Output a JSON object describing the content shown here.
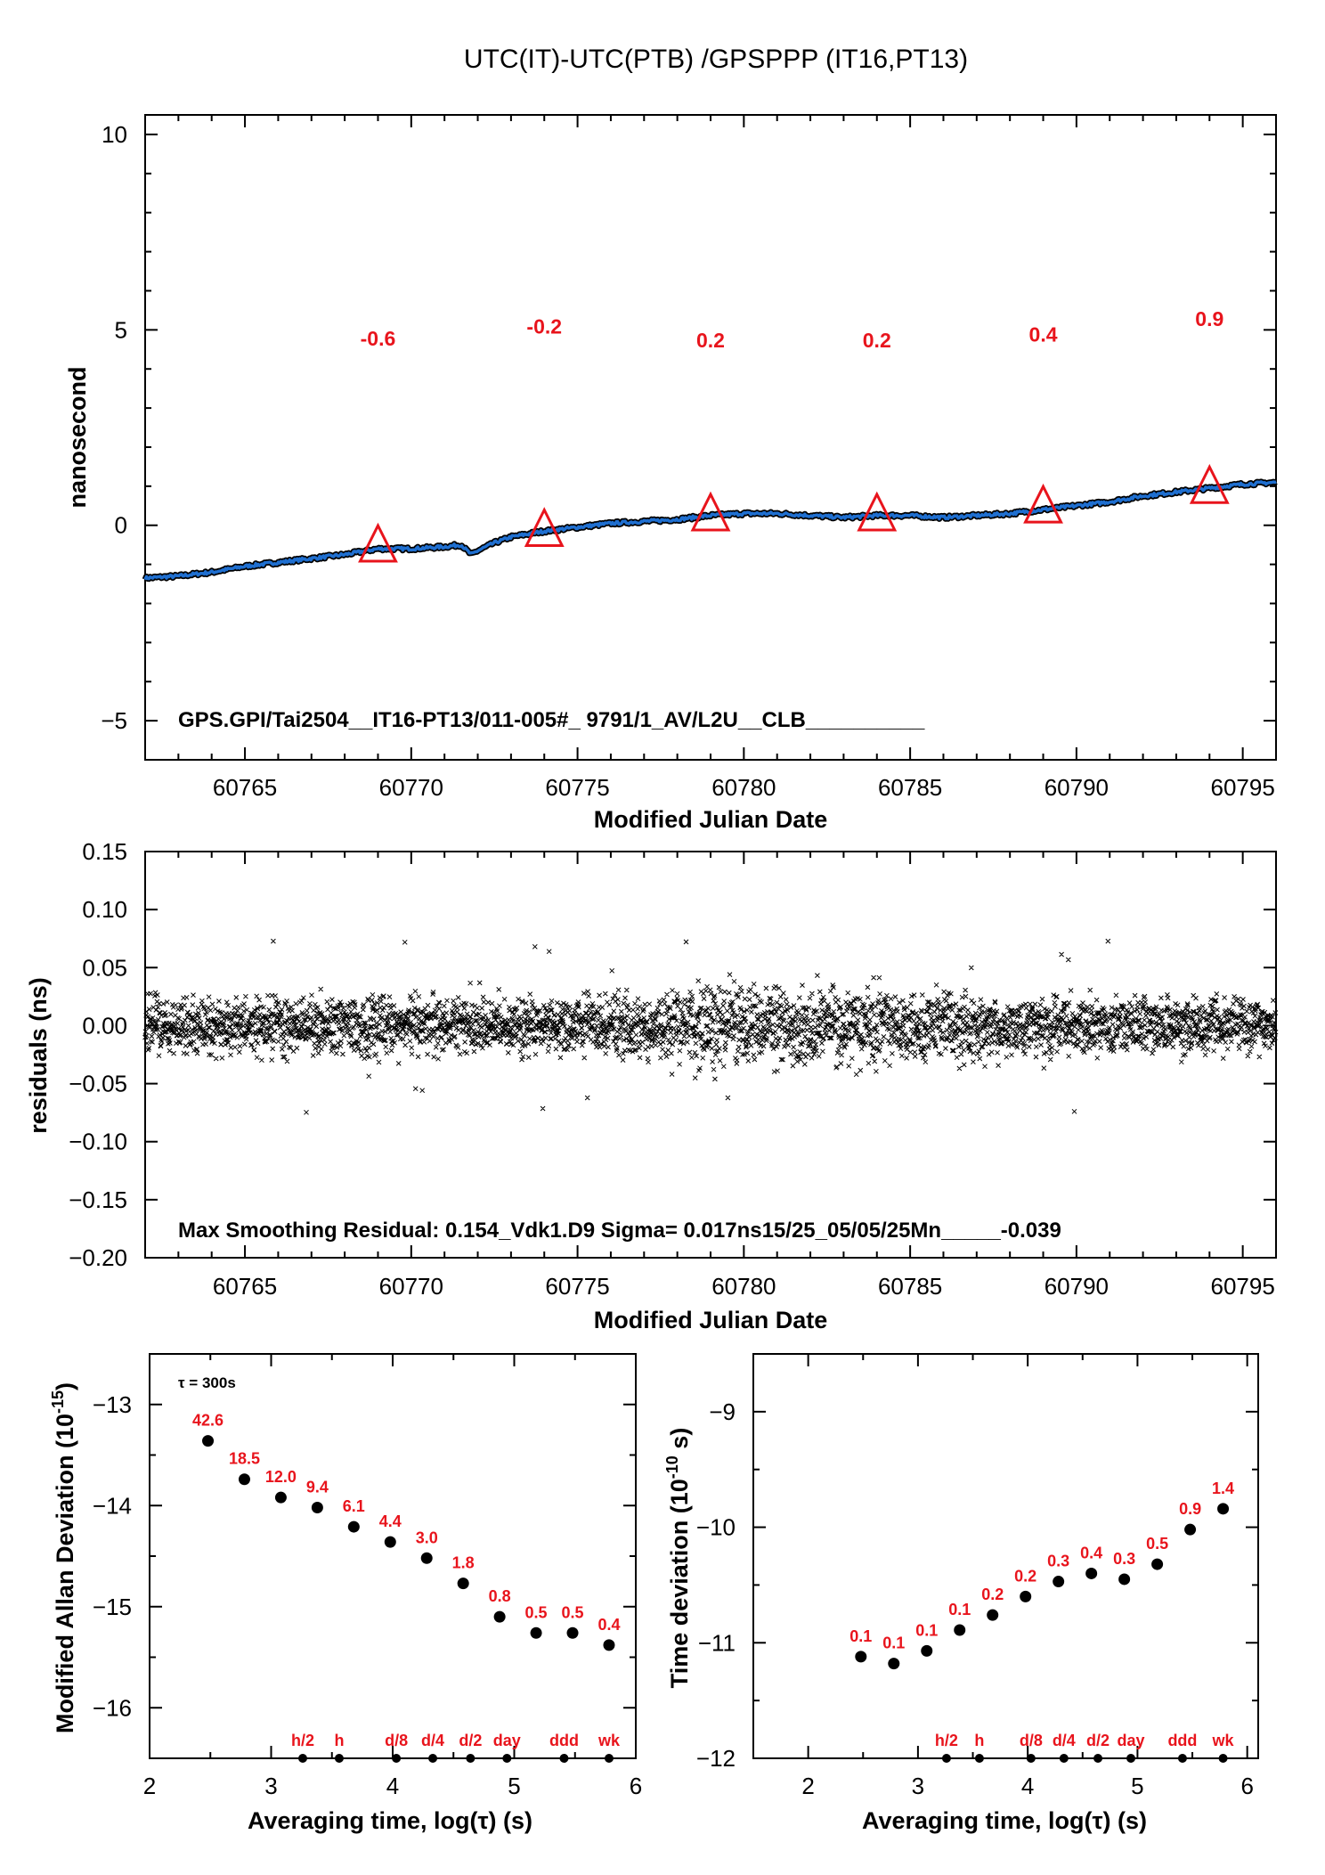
{
  "chart_data": [
    {
      "type": "line",
      "title": "UTC(IT)-UTC(PTB)  /GPSPPP  (IT16,PT13)",
      "xlabel": "Modified Julian Date",
      "ylabel": "nanosecond",
      "xlim": [
        60762,
        60796
      ],
      "ylim": [
        -6,
        10.5
      ],
      "xticks": [
        "60765",
        "60770",
        "60775",
        "60780",
        "60785",
        "60790",
        "60795"
      ],
      "yticks": [
        "10",
        "5",
        "0",
        "−5"
      ],
      "series_color": "#1f6fd0",
      "curve": {
        "x": [
          60762,
          60763,
          60764,
          60765,
          60766,
          60767,
          60768,
          60769,
          60770,
          60771,
          60771.5,
          60771.8,
          60772,
          60772.5,
          60773,
          60774,
          60775,
          60776,
          60777,
          60778,
          60779,
          60780,
          60781,
          60782,
          60783,
          60784,
          60785,
          60786,
          60787,
          60788,
          60789,
          60790,
          60791,
          60792,
          60793,
          60794,
          60795,
          60796
        ],
        "y": [
          -1.35,
          -1.3,
          -1.2,
          -1.05,
          -0.95,
          -0.85,
          -0.75,
          -0.6,
          -0.6,
          -0.55,
          -0.5,
          -0.75,
          -0.65,
          -0.45,
          -0.3,
          -0.15,
          -0.05,
          0.05,
          0.1,
          0.15,
          0.25,
          0.3,
          0.3,
          0.25,
          0.2,
          0.25,
          0.25,
          0.2,
          0.25,
          0.3,
          0.4,
          0.5,
          0.6,
          0.75,
          0.85,
          0.95,
          1.05,
          1.1
        ]
      },
      "markers": {
        "x": [
          60769,
          60774,
          60779,
          60784,
          60789,
          60794
        ],
        "y": [
          -0.6,
          -0.2,
          0.2,
          0.2,
          0.4,
          0.9
        ]
      },
      "marker_labels": [
        "-0.6",
        "-0.2",
        "0.2",
        "0.2",
        "0.4",
        "0.9"
      ],
      "annotation": "GPS.GPI/Tai2504__IT16-PT13/011-005#_  9791/1_AV/L2U__CLB__________"
    },
    {
      "type": "scatter",
      "xlabel": "Modified Julian Date",
      "ylabel": "residuals (ns)",
      "xlim": [
        60762,
        60796
      ],
      "ylim": [
        -0.2,
        0.15
      ],
      "xticks": [
        "60765",
        "60770",
        "60775",
        "60780",
        "60785",
        "60790",
        "60795"
      ],
      "yticks": [
        "0.15",
        "0.10",
        "0.05",
        "0.00",
        "−0.05",
        "−0.10",
        "−0.15",
        "−0.20"
      ],
      "sigma_ns": 0.017,
      "max_residual": 0.154,
      "annotation": "Max Smoothing Residual: 0.154_Vdk1.D9  Sigma= 0.017ns15/25_05/05/25Mn_____-0.039"
    },
    {
      "type": "scatter",
      "xlabel": "Averaging time, log(τ) (s)",
      "ylabel": "Modified Allan Deviation",
      "ylabel_unit": "(10",
      "ylabel_exp": "-15",
      "ylabel_close": ")",
      "xlim": [
        2,
        6
      ],
      "ylim": [
        -16.5,
        -12.5
      ],
      "xticks": [
        "2",
        "3",
        "4",
        "5",
        "6"
      ],
      "yticks": [
        "−13",
        "−14",
        "−15",
        "−16"
      ],
      "tau_note": "τ = 300s",
      "x": [
        2.48,
        2.78,
        3.08,
        3.38,
        3.68,
        3.98,
        4.28,
        4.58,
        4.88,
        5.18,
        5.48,
        5.78
      ],
      "y": [
        -13.36,
        -13.74,
        -13.92,
        -14.02,
        -14.21,
        -14.36,
        -14.52,
        -14.77,
        -15.1,
        -15.26,
        -15.26,
        -15.38
      ],
      "point_labels": [
        "42.6",
        "18.5",
        "12.0",
        "9.4",
        "6.1",
        "4.4",
        "3.0",
        "1.8",
        "0.8",
        "0.5",
        "0.5",
        "0.4"
      ],
      "span_markers": [
        {
          "label": "h/2",
          "x": 3.26
        },
        {
          "label": "h",
          "x": 3.56
        },
        {
          "label": "d/8",
          "x": 4.03
        },
        {
          "label": "d/4",
          "x": 4.33
        },
        {
          "label": "d/2",
          "x": 4.64
        },
        {
          "label": "day",
          "x": 4.94
        },
        {
          "label": "ddd",
          "x": 5.41
        },
        {
          "label": "wk",
          "x": 5.78
        }
      ]
    },
    {
      "type": "scatter",
      "xlabel": "Averaging time, log(τ) (s)",
      "ylabel": "Time deviation",
      "ylabel_unit": "(10",
      "ylabel_exp": "-10",
      "ylabel_close": " s)",
      "xlim": [
        1.5,
        6.1
      ],
      "ylim": [
        -12,
        -8.5
      ],
      "xticks": [
        "2",
        "3",
        "4",
        "5",
        "6"
      ],
      "yticks": [
        "−9",
        "−10",
        "−11",
        "−12"
      ],
      "x": [
        2.48,
        2.78,
        3.08,
        3.38,
        3.68,
        3.98,
        4.28,
        4.58,
        4.88,
        5.18,
        5.48,
        5.78
      ],
      "y": [
        -11.12,
        -11.18,
        -11.07,
        -10.89,
        -10.76,
        -10.6,
        -10.47,
        -10.4,
        -10.45,
        -10.32,
        -10.02,
        -9.84
      ],
      "point_labels": [
        "0.1",
        "0.1",
        "0.1",
        "0.1",
        "0.2",
        "0.2",
        "0.3",
        "0.4",
        "0.3",
        "0.5",
        "0.9",
        "1.4"
      ],
      "span_markers": [
        {
          "label": "h/2",
          "x": 3.26
        },
        {
          "label": "h",
          "x": 3.56
        },
        {
          "label": "d/8",
          "x": 4.03
        },
        {
          "label": "d/4",
          "x": 4.33
        },
        {
          "label": "d/2",
          "x": 4.64
        },
        {
          "label": "day",
          "x": 4.94
        },
        {
          "label": "ddd",
          "x": 5.41
        },
        {
          "label": "wk",
          "x": 5.78
        }
      ]
    }
  ]
}
